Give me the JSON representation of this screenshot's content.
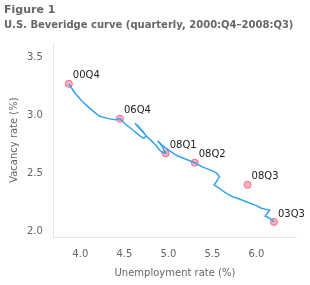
{
  "chart_data": {
    "type": "line",
    "title": "Figure 1",
    "subtitle": "U.S. Beveridge curve (quarterly, 2000:Q4–2008:Q3)",
    "xlabel": "Unemployment rate (%)",
    "ylabel": "Vacancy rate (%)",
    "xlim": [
      3.7,
      6.45
    ],
    "ylim": [
      1.95,
      3.62
    ],
    "xticks": [
      {
        "value": 4.0,
        "label": "4.0"
      },
      {
        "value": 4.5,
        "label": "4.5"
      },
      {
        "value": 5.0,
        "label": "5.0"
      },
      {
        "value": 5.5,
        "label": "5.5"
      },
      {
        "value": 6.0,
        "label": "6.0"
      }
    ],
    "yticks": [
      {
        "value": 2.0,
        "label": "2.0"
      },
      {
        "value": 2.5,
        "label": "2.5"
      },
      {
        "value": 3.0,
        "label": "3.0"
      },
      {
        "value": 3.5,
        "label": "3.5"
      }
    ],
    "grid": false,
    "x": [
      3.87,
      3.93,
      4.02,
      4.12,
      4.22,
      4.32,
      4.4,
      4.45,
      4.5,
      4.6,
      4.68,
      4.72,
      4.75,
      4.7,
      4.65,
      4.62,
      4.68,
      4.75,
      4.82,
      4.87,
      4.9,
      4.93,
      4.97,
      4.95,
      4.93,
      4.9,
      4.88,
      4.93,
      5.0,
      5.1,
      5.2,
      5.3,
      5.35,
      5.4,
      5.5,
      5.55,
      5.58,
      5.55,
      5.52,
      5.58,
      5.65,
      5.72,
      5.8,
      5.9,
      6.0,
      6.05,
      6.1,
      6.15,
      6.12,
      6.1,
      6.13,
      6.17,
      6.2
    ],
    "values": [
      3.27,
      3.2,
      3.12,
      3.05,
      2.99,
      2.97,
      2.96,
      2.97,
      2.93,
      2.87,
      2.82,
      2.8,
      2.82,
      2.87,
      2.91,
      2.93,
      2.88,
      2.82,
      2.77,
      2.73,
      2.7,
      2.68,
      2.67,
      2.7,
      2.73,
      2.76,
      2.78,
      2.74,
      2.7,
      2.65,
      2.62,
      2.59,
      2.57,
      2.55,
      2.52,
      2.5,
      2.47,
      2.43,
      2.4,
      2.37,
      2.33,
      2.3,
      2.28,
      2.25,
      2.22,
      2.2,
      2.19,
      2.18,
      2.15,
      2.13,
      2.12,
      2.1,
      2.08
    ],
    "annotations": [
      {
        "text": "00Q4",
        "x": 3.87,
        "y": 3.27
      },
      {
        "text": "06Q4",
        "x": 4.45,
        "y": 2.97
      },
      {
        "text": "08Q1",
        "x": 4.97,
        "y": 2.67
      },
      {
        "text": "08Q2",
        "x": 5.3,
        "y": 2.59
      },
      {
        "text": "08Q3",
        "x": 5.9,
        "y": 2.4
      },
      {
        "text": "03Q3",
        "x": 6.2,
        "y": 2.08
      }
    ]
  }
}
